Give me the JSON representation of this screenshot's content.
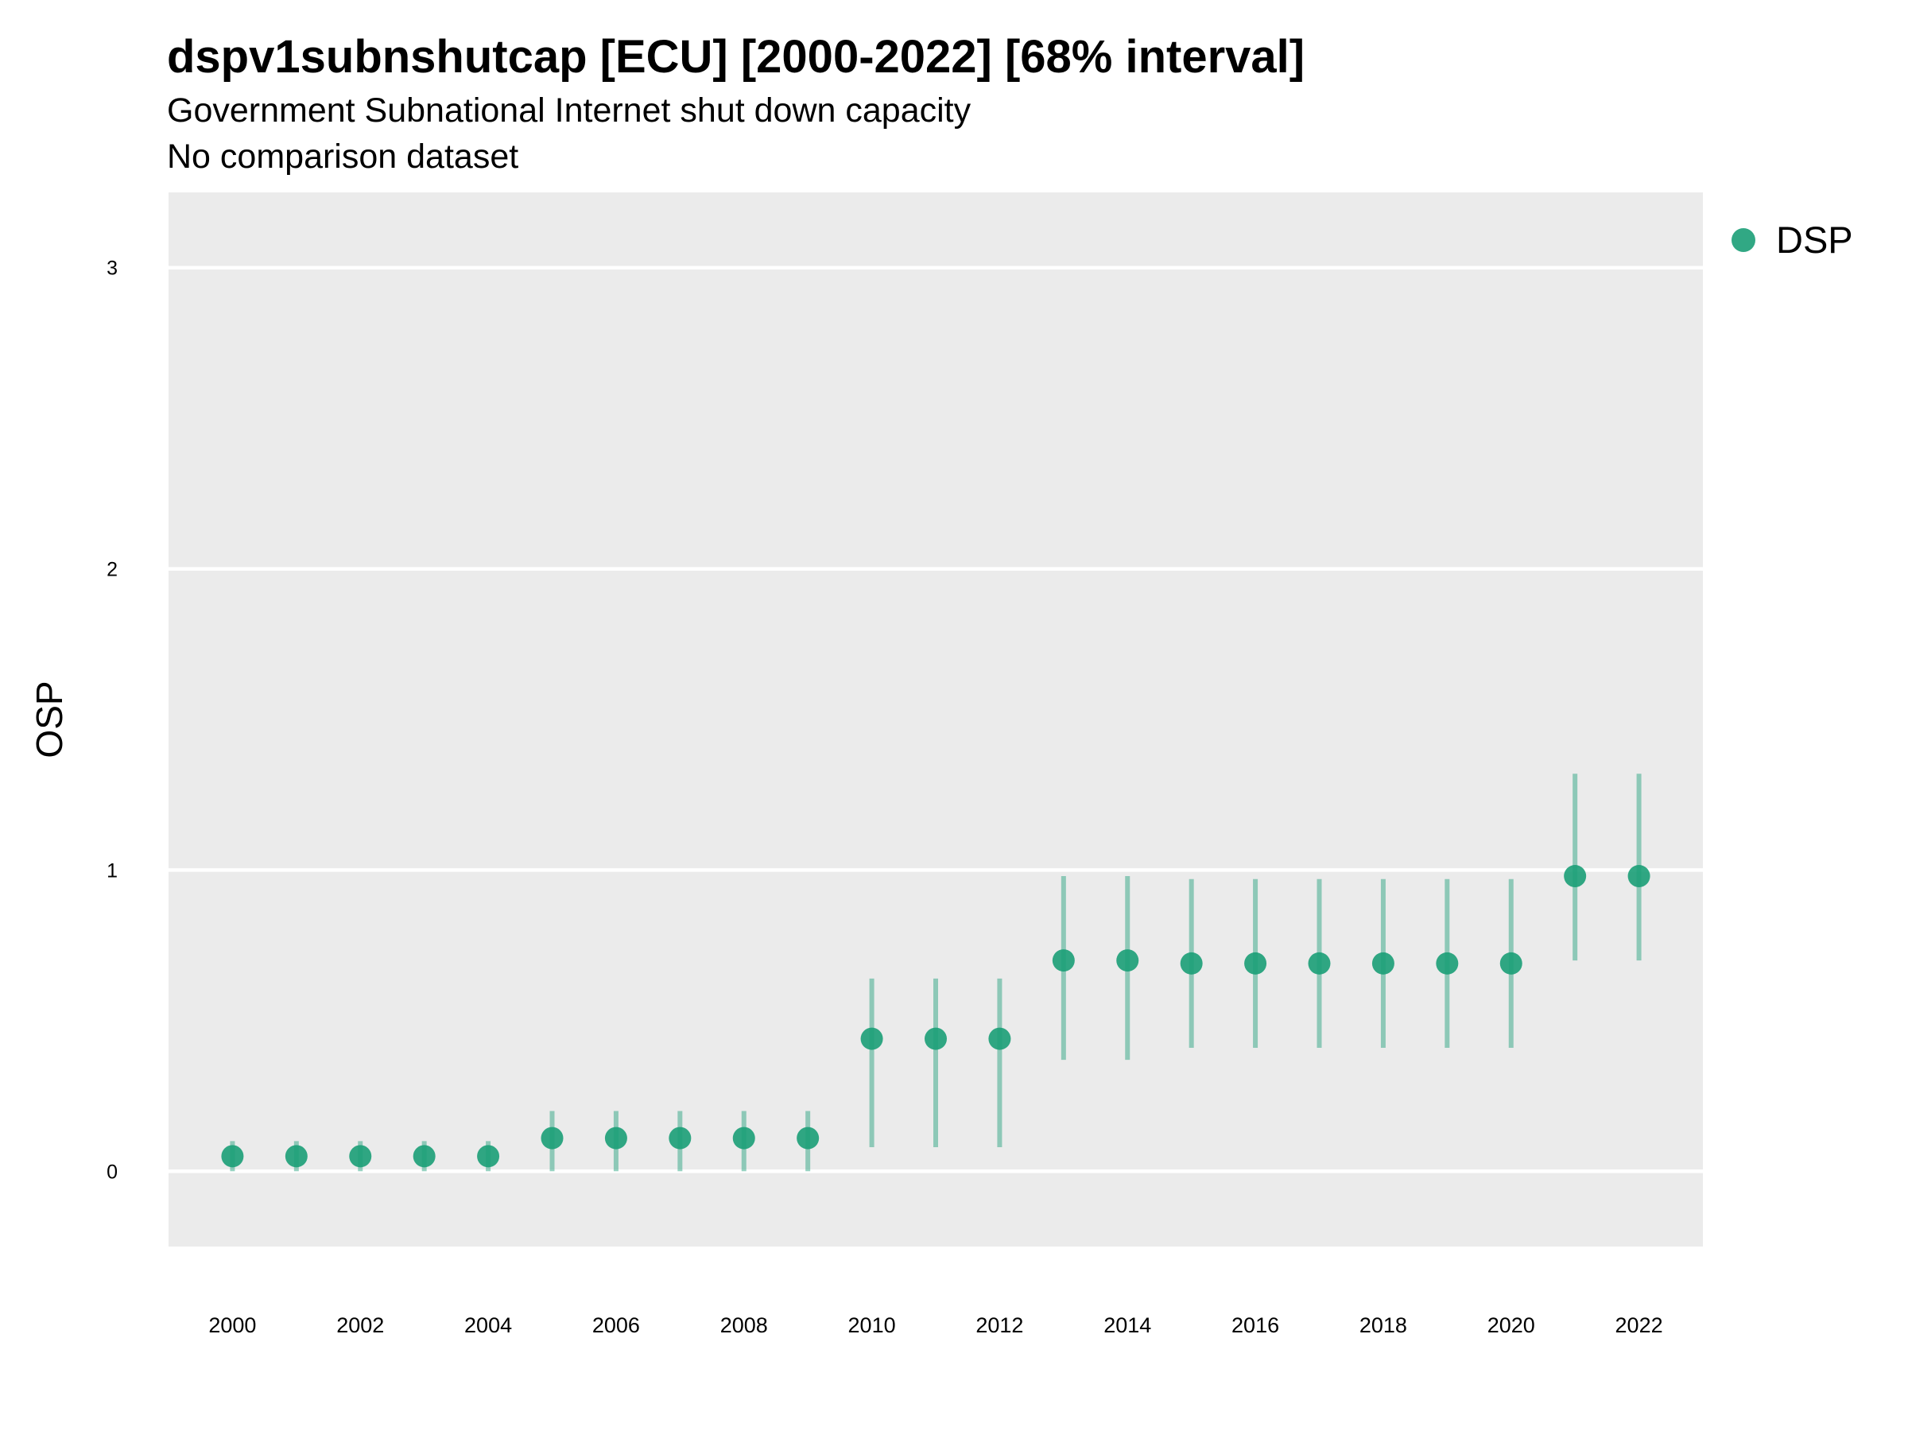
{
  "title": "dspv1subnshutcap [ECU] [2000-2022] [68% interval]",
  "subtitle": "Government Subnational Internet shut down capacity",
  "subtitle2": "No comparison dataset",
  "colors": {
    "series": "#1b9e77",
    "panel": "#ebebeb",
    "grid": "#ffffff"
  },
  "legend": {
    "position": "right",
    "label": "DSP"
  },
  "chart_data": {
    "type": "scatter",
    "title": "dspv1subnshutcap [ECU] [2000-2022] [68% interval]",
    "xlabel": "",
    "ylabel": "OSP",
    "xlim": [
      1999,
      2023
    ],
    "ylim": [
      -0.25,
      3.25
    ],
    "x_ticks": [
      2000,
      2002,
      2004,
      2006,
      2008,
      2010,
      2012,
      2014,
      2016,
      2018,
      2020,
      2022
    ],
    "y_ticks": [
      0,
      1,
      2,
      3
    ],
    "grid": true,
    "series": [
      {
        "name": "DSP",
        "x": [
          2000,
          2001,
          2002,
          2003,
          2004,
          2005,
          2006,
          2007,
          2008,
          2009,
          2010,
          2011,
          2012,
          2013,
          2014,
          2015,
          2016,
          2017,
          2018,
          2019,
          2020,
          2021,
          2022
        ],
        "y": [
          0.05,
          0.05,
          0.05,
          0.05,
          0.05,
          0.11,
          0.11,
          0.11,
          0.11,
          0.11,
          0.44,
          0.44,
          0.44,
          0.7,
          0.7,
          0.69,
          0.69,
          0.69,
          0.69,
          0.69,
          0.69,
          0.98,
          0.98
        ],
        "lower": [
          0.0,
          0.0,
          0.0,
          0.0,
          0.0,
          0.0,
          0.0,
          0.0,
          0.0,
          0.0,
          0.08,
          0.08,
          0.08,
          0.37,
          0.37,
          0.41,
          0.41,
          0.41,
          0.41,
          0.41,
          0.41,
          0.7,
          0.7
        ],
        "upper": [
          0.1,
          0.1,
          0.1,
          0.1,
          0.1,
          0.2,
          0.2,
          0.2,
          0.2,
          0.2,
          0.64,
          0.64,
          0.64,
          0.98,
          0.98,
          0.97,
          0.97,
          0.97,
          0.97,
          0.97,
          0.97,
          1.32,
          1.32
        ]
      }
    ]
  }
}
